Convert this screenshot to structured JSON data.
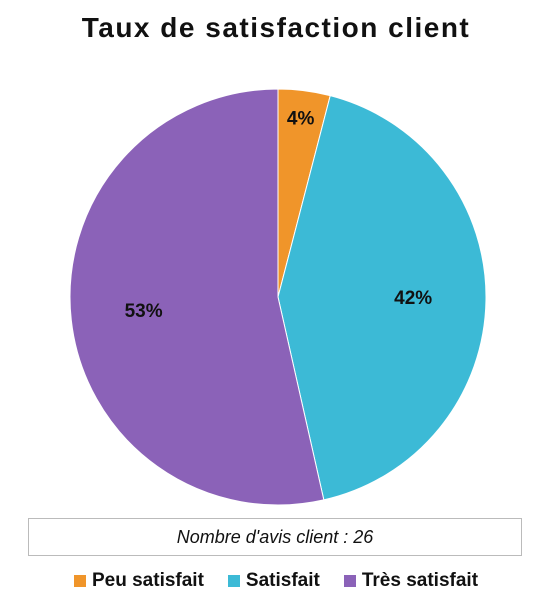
{
  "chart_data": {
    "type": "pie",
    "title": "Taux de satisfaction client",
    "categories": [
      "Peu satisfait",
      "Satisfait",
      "Très satisfait"
    ],
    "values": [
      4,
      42,
      53
    ],
    "value_labels": [
      "4%",
      "42%",
      "53%"
    ],
    "colors": [
      "#f0952a",
      "#3cbad6",
      "#8b62b8"
    ],
    "annotation": "Nombre d'avis client : 26",
    "legend": "bottom"
  }
}
